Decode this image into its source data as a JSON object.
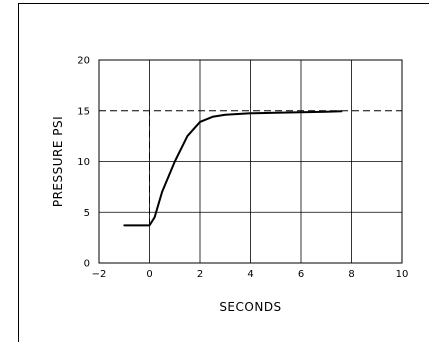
{
  "chart_data": {
    "type": "line",
    "xlabel": "SECONDS",
    "ylabel": "PRESSURE  PSI",
    "xlim": [
      -2,
      10
    ],
    "ylim": [
      0,
      20
    ],
    "x_ticks": [
      -2,
      0,
      2,
      4,
      6,
      8,
      10
    ],
    "y_ticks": [
      0,
      5,
      10,
      15,
      20
    ],
    "x_tick_labels": [
      "−2",
      "0",
      "2",
      "4",
      "6",
      "8",
      "10"
    ],
    "y_tick_labels": [
      "0",
      "5",
      "10",
      "15",
      "20"
    ],
    "grid": true,
    "series": [
      {
        "style": "solid",
        "x": [
          -1.0,
          0.0,
          0.2,
          0.5,
          1.0,
          1.5,
          2.0,
          2.5,
          3.0,
          4.0,
          5.0,
          6.0,
          7.0,
          7.6
        ],
        "y": [
          3.7,
          3.7,
          4.5,
          7.0,
          10.0,
          12.5,
          13.9,
          14.4,
          14.6,
          14.75,
          14.8,
          14.85,
          14.9,
          14.95
        ]
      }
    ],
    "reference_lines": [
      {
        "style": "dashed",
        "x": [
          0,
          0
        ],
        "y": [
          3.7,
          15
        ]
      },
      {
        "style": "dashed",
        "x": [
          -2,
          10
        ],
        "y": [
          15,
          15
        ]
      }
    ]
  }
}
